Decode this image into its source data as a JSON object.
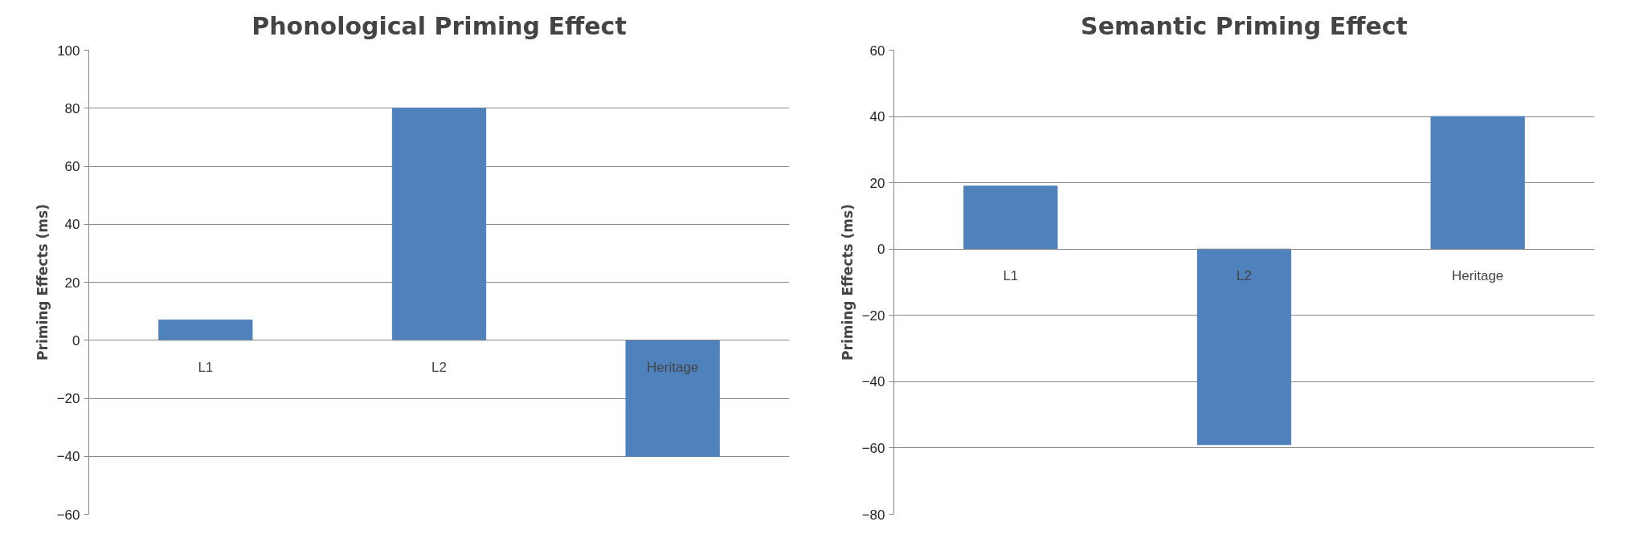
{
  "chart_data": [
    {
      "type": "bar",
      "title": "Phonological Priming Effect",
      "ylabel": "Priming Effects (ms)",
      "categories": [
        "L1",
        "L2",
        "Heritage"
      ],
      "values": [
        7,
        80,
        -40
      ],
      "color": "#4f81bd",
      "ylim": [
        -60,
        100
      ],
      "yticks": [
        -60,
        -40,
        -20,
        0,
        20,
        40,
        60,
        80,
        100
      ],
      "grid": "y"
    },
    {
      "type": "bar",
      "title": "Semantic Priming Effect",
      "ylabel": "Priming Effects (ms)",
      "categories": [
        "L1",
        "L2",
        "Heritage"
      ],
      "values": [
        19,
        -59,
        40
      ],
      "color": "#4f81bd",
      "ylim": [
        -80,
        60
      ],
      "yticks": [
        -80,
        -60,
        -40,
        -20,
        0,
        20,
        40,
        60
      ],
      "grid": "y"
    }
  ]
}
